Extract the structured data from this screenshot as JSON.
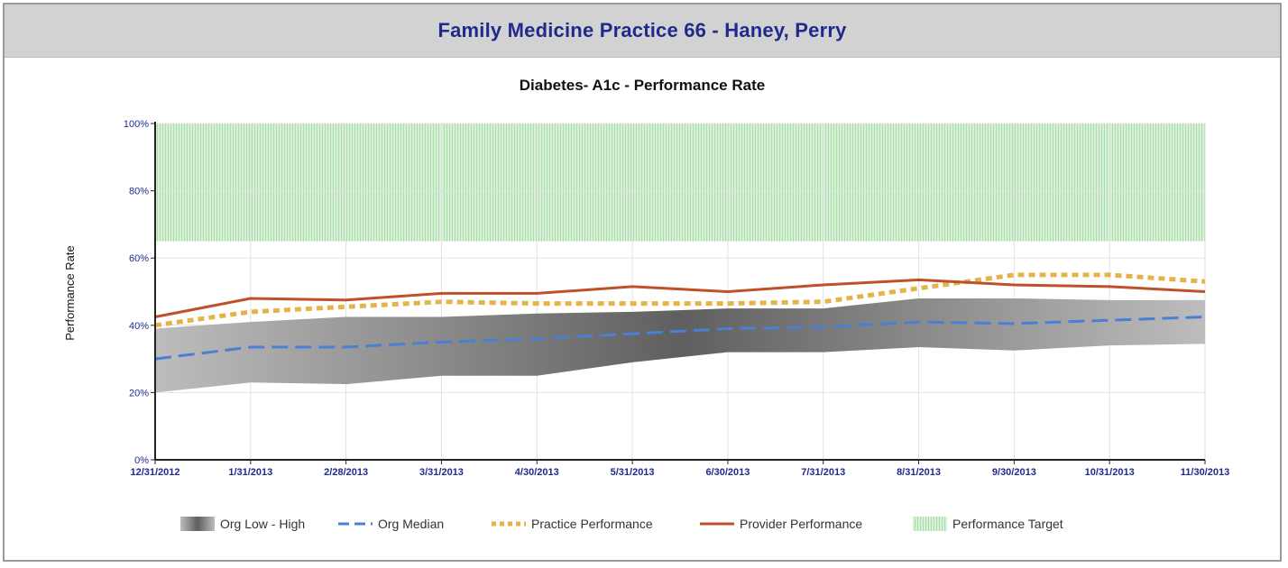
{
  "header": {
    "title": "Family Medicine Practice 66 - Haney, Perry"
  },
  "chart_data": {
    "type": "line",
    "title": "Diabetes- A1c -  Performance Rate",
    "xlabel": "",
    "ylabel": "Performance Rate",
    "ylim": [
      0,
      100
    ],
    "y_ticks": [
      0,
      20,
      40,
      60,
      80,
      100
    ],
    "y_tick_labels": [
      "0%",
      "20%",
      "40%",
      "60%",
      "80%",
      "100%"
    ],
    "categories": [
      "12/31/2012",
      "1/31/2013",
      "2/28/2013",
      "3/31/2013",
      "4/30/2013",
      "5/31/2013",
      "6/30/2013",
      "7/31/2013",
      "8/31/2013",
      "9/30/2013",
      "10/31/2013",
      "11/30/2013"
    ],
    "band": {
      "name": "Org Low - High",
      "low": [
        20,
        23,
        22.5,
        25,
        25,
        29,
        32,
        32,
        33.5,
        32.5,
        34,
        34.5
      ],
      "high": [
        39,
        41,
        42.5,
        42.5,
        43.5,
        44,
        45,
        45,
        48,
        48,
        47.5,
        47.5
      ]
    },
    "target": {
      "name": "Performance Target",
      "low": 65,
      "high": 100
    },
    "series": [
      {
        "name": "Org Median",
        "style": "dashed",
        "color": "#4a7fd6",
        "values": [
          30,
          33.5,
          33.5,
          35,
          36,
          37.5,
          39,
          39.5,
          41,
          40.5,
          41.5,
          42.5
        ]
      },
      {
        "name": "Practice Performance",
        "style": "dotted",
        "color": "#e6b24a",
        "values": [
          40,
          44,
          45.5,
          47,
          46.5,
          46.5,
          46.5,
          47,
          51,
          55,
          55,
          53
        ]
      },
      {
        "name": "Provider Performance",
        "style": "solid",
        "color": "#c0502a",
        "values": [
          42.5,
          48,
          47.5,
          49.5,
          49.5,
          51.5,
          50,
          52,
          53.5,
          52,
          51.5,
          50
        ]
      }
    ],
    "legend": {
      "placement": "bottom",
      "items": [
        "Org Low - High",
        "Org Median",
        "Practice Performance",
        "Provider Performance",
        "Performance Target"
      ]
    },
    "grid": true,
    "colors": {
      "target_fill": "#d8f0d8",
      "target_hatch": "#a8dca8",
      "band_dark": "#666666",
      "band_light": "#c8c8c8",
      "axis": "#222222",
      "tick_text": "#1f2a8c",
      "grid": "#e2e2e2"
    }
  }
}
